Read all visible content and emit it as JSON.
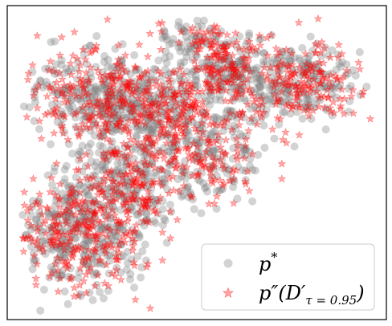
{
  "chart_data": {
    "type": "scatter",
    "title": "",
    "xlabel": "",
    "ylabel": "",
    "axis_ticks": "none",
    "grid": false,
    "legend_placement": "lower-right",
    "series": [
      {
        "legend_main": "p",
        "legend_sup": "*",
        "marker": "circle",
        "color": "#808080",
        "alpha": 0.35,
        "clusters": [
          {
            "cx": 0.4,
            "cy": 0.33,
            "sx": 0.14,
            "sy": 0.09,
            "n": 380
          },
          {
            "cx": 0.2,
            "cy": 0.27,
            "sx": 0.1,
            "sy": 0.08,
            "n": 200
          },
          {
            "cx": 0.78,
            "cy": 0.22,
            "sx": 0.1,
            "sy": 0.07,
            "n": 220
          },
          {
            "cx": 0.58,
            "cy": 0.17,
            "sx": 0.06,
            "sy": 0.05,
            "n": 110
          },
          {
            "cx": 0.17,
            "cy": 0.73,
            "sx": 0.1,
            "sy": 0.1,
            "n": 350
          },
          {
            "cx": 0.32,
            "cy": 0.56,
            "sx": 0.08,
            "sy": 0.07,
            "n": 160
          },
          {
            "cx": 0.55,
            "cy": 0.5,
            "sx": 0.07,
            "sy": 0.07,
            "n": 90
          },
          {
            "cx": 0.5,
            "cy": 0.07,
            "sx": 0.05,
            "sy": 0.03,
            "n": 40
          }
        ]
      },
      {
        "legend_main": "p″(D′",
        "legend_sub": "τ = 0.95",
        "legend_close": ")",
        "marker": "star",
        "color": "#ff0000",
        "alpha": 0.35,
        "clusters": [
          {
            "cx": 0.4,
            "cy": 0.33,
            "sx": 0.14,
            "sy": 0.09,
            "n": 300
          },
          {
            "cx": 0.2,
            "cy": 0.27,
            "sx": 0.1,
            "sy": 0.08,
            "n": 160
          },
          {
            "cx": 0.78,
            "cy": 0.22,
            "sx": 0.1,
            "sy": 0.07,
            "n": 180
          },
          {
            "cx": 0.58,
            "cy": 0.17,
            "sx": 0.06,
            "sy": 0.05,
            "n": 90
          },
          {
            "cx": 0.17,
            "cy": 0.73,
            "sx": 0.1,
            "sy": 0.1,
            "n": 280
          },
          {
            "cx": 0.32,
            "cy": 0.56,
            "sx": 0.08,
            "sy": 0.07,
            "n": 120
          },
          {
            "cx": 0.55,
            "cy": 0.5,
            "sx": 0.07,
            "sy": 0.07,
            "n": 80
          },
          {
            "cx": 0.5,
            "cy": 0.07,
            "sx": 0.05,
            "sy": 0.03,
            "n": 30
          }
        ]
      }
    ]
  }
}
